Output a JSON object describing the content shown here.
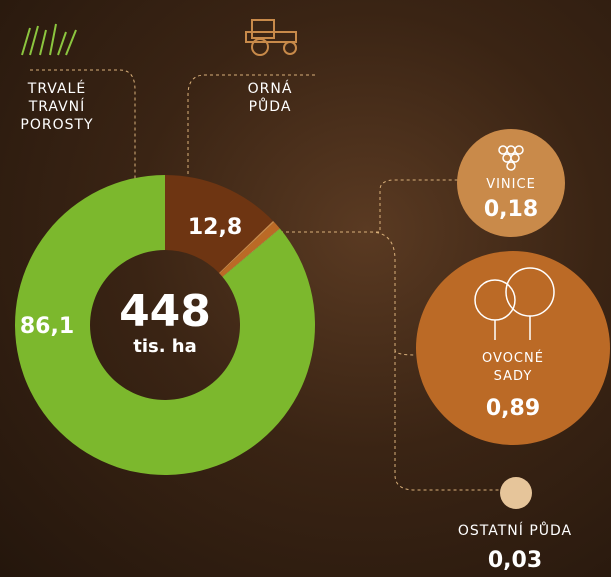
{
  "chart_data": {
    "type": "pie",
    "donut": true,
    "categories": [
      "ORNÁ PŮDA",
      "VINICE",
      "OVOCNÉ SADY",
      "OSTATNÍ PŮDA",
      "TRVALÉ TRAVNÍ POROSTY"
    ],
    "values": [
      12.8,
      0.18,
      0.89,
      0.03,
      86.1
    ],
    "value_labels": [
      "12,8",
      "0,18",
      "0,89",
      "0,03",
      "86,1"
    ],
    "colors": [
      "#6e3512",
      "#c98a4a",
      "#bb6a26",
      "#e6c59a",
      "#7cb82d"
    ],
    "total": 448,
    "total_unit": "tis. ha"
  }
}
